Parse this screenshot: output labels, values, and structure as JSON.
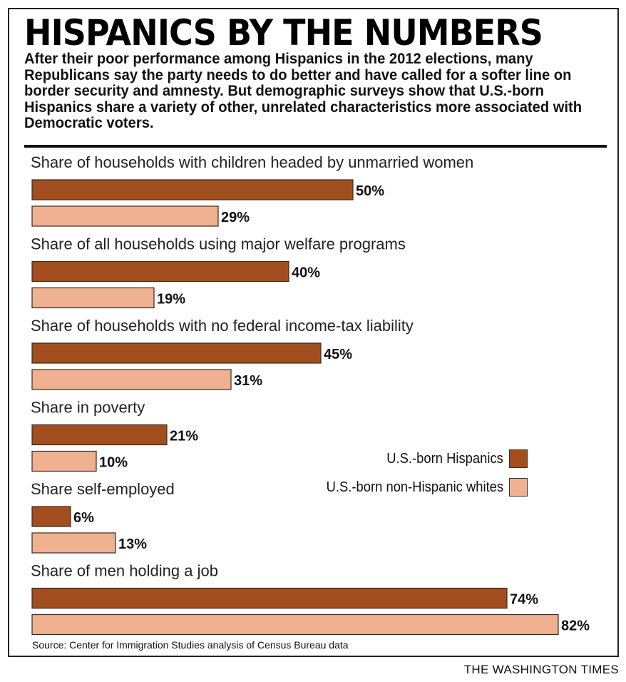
{
  "header": {
    "title": "HISPANICS BY THE NUMBERS",
    "dek": "After their poor performance among Hispanics in the 2012 elections, many Republicans say the party needs to do better and have called for a softer line on border security and amnesty. But demographic surveys show that U.S.-born Hispanics share a variety of other, unrelated characteristics more associated with Democratic voters."
  },
  "legend": {
    "hispanic_label": "U.S.-born Hispanics",
    "white_label": "U.S.-born non-Hispanic whites"
  },
  "colors": {
    "hispanic": "#a24e1f",
    "white": "#efb190",
    "bar_stroke": "#3a2a20"
  },
  "footer": {
    "source": "Source: Center for Immigration Studies analysis of Census Bureau data",
    "credit": "THE WASHINGTON TIMES"
  },
  "chart_data": {
    "type": "bar",
    "orientation": "horizontal",
    "title": "HISPANICS BY THE NUMBERS",
    "categories": [
      "Share of households with children headed by unmarried women",
      "Share of all households using major welfare programs",
      "Share of households with no federal income-tax liability",
      "Share in poverty",
      "Share self-employed",
      "Share of men holding a job"
    ],
    "series": [
      {
        "name": "U.S.-born Hispanics",
        "values": [
          50,
          40,
          45,
          21,
          6,
          74
        ],
        "labels": [
          "50%",
          "40%",
          "45%",
          "21%",
          "6%",
          "74%"
        ]
      },
      {
        "name": "U.S.-born non-Hispanic whites",
        "values": [
          29,
          19,
          31,
          10,
          13,
          82
        ],
        "labels": [
          "29%",
          "19%",
          "31%",
          "10%",
          "13%",
          "82%"
        ]
      }
    ],
    "xlim": [
      0,
      100
    ],
    "grid": false,
    "legend_position": "middle-right"
  }
}
